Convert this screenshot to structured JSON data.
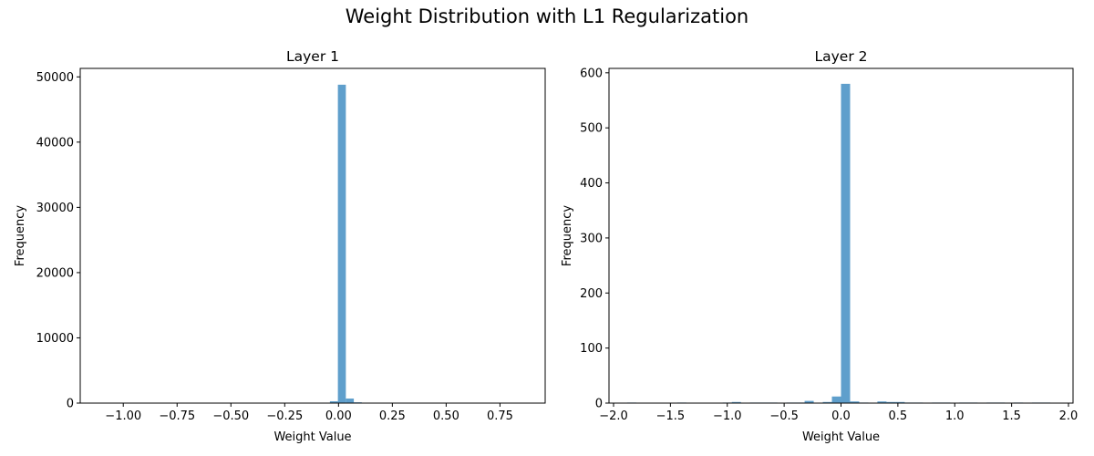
{
  "figure": {
    "title": "Weight Distribution with L1 Regularization"
  },
  "chart_data": [
    {
      "type": "bar",
      "title": "Layer 1",
      "xlabel": "Weight Value",
      "ylabel": "Frequency",
      "xlim": [
        -1.2,
        0.96
      ],
      "ylim": [
        0,
        51300
      ],
      "xticks": [
        -1.0,
        -0.75,
        -0.5,
        -0.25,
        0.0,
        0.25,
        0.5,
        0.75
      ],
      "xtick_labels": [
        "−1.00",
        "−0.75",
        "−0.50",
        "−0.25",
        "0.00",
        "0.25",
        "0.50",
        "0.75"
      ],
      "yticks": [
        0,
        10000,
        20000,
        30000,
        40000,
        50000
      ],
      "ytick_labels": [
        "0",
        "10000",
        "20000",
        "30000",
        "40000",
        "50000"
      ],
      "bar_color": "#5f9fcc",
      "bins": [
        {
          "x0": -0.077,
          "x1": -0.04,
          "value": 60
        },
        {
          "x0": -0.04,
          "x1": -0.003,
          "value": 280
        },
        {
          "x0": -0.003,
          "x1": 0.034,
          "value": 48800
        },
        {
          "x0": 0.034,
          "x1": 0.071,
          "value": 700
        },
        {
          "x0": 0.071,
          "x1": 0.108,
          "value": 120
        },
        {
          "x0": 0.108,
          "x1": 0.145,
          "value": 40
        }
      ]
    },
    {
      "type": "bar",
      "title": "Layer 2",
      "xlabel": "Weight Value",
      "ylabel": "Frequency",
      "xlim": [
        -2.04,
        2.04
      ],
      "ylim": [
        0,
        608
      ],
      "xticks": [
        -2.0,
        -1.5,
        -1.0,
        -0.5,
        0.0,
        0.5,
        1.0,
        1.5,
        2.0
      ],
      "xtick_labels": [
        "−2.0",
        "−1.5",
        "−1.0",
        "−0.5",
        "0.0",
        "0.5",
        "1.0",
        "1.5",
        "2.0"
      ],
      "yticks": [
        0,
        100,
        200,
        300,
        400,
        500,
        600
      ],
      "ytick_labels": [
        "0",
        "100",
        "200",
        "300",
        "400",
        "500",
        "600"
      ],
      "bar_color": "#5f9fcc",
      "bins": [
        {
          "x0": -1.88,
          "x1": -1.8,
          "value": 1
        },
        {
          "x0": -1.44,
          "x1": -1.36,
          "value": 1
        },
        {
          "x0": -1.04,
          "x1": -0.96,
          "value": 1
        },
        {
          "x0": -0.96,
          "x1": -0.88,
          "value": 2
        },
        {
          "x0": -0.8,
          "x1": -0.72,
          "value": 1
        },
        {
          "x0": -0.72,
          "x1": -0.64,
          "value": 1
        },
        {
          "x0": -0.64,
          "x1": -0.56,
          "value": 1
        },
        {
          "x0": -0.48,
          "x1": -0.4,
          "value": 1
        },
        {
          "x0": -0.4,
          "x1": -0.32,
          "value": 1
        },
        {
          "x0": -0.32,
          "x1": -0.24,
          "value": 4
        },
        {
          "x0": -0.16,
          "x1": -0.08,
          "value": 2
        },
        {
          "x0": -0.08,
          "x1": 0.0,
          "value": 12
        },
        {
          "x0": 0.0,
          "x1": 0.08,
          "value": 580
        },
        {
          "x0": 0.08,
          "x1": 0.16,
          "value": 3
        },
        {
          "x0": 0.16,
          "x1": 0.24,
          "value": 1
        },
        {
          "x0": 0.32,
          "x1": 0.4,
          "value": 3
        },
        {
          "x0": 0.4,
          "x1": 0.48,
          "value": 2
        },
        {
          "x0": 0.48,
          "x1": 0.56,
          "value": 2
        },
        {
          "x0": 0.56,
          "x1": 0.64,
          "value": 1
        },
        {
          "x0": 0.64,
          "x1": 0.72,
          "value": 1
        },
        {
          "x0": 0.8,
          "x1": 0.88,
          "value": 1
        },
        {
          "x0": 0.88,
          "x1": 0.96,
          "value": 1
        },
        {
          "x0": 1.04,
          "x1": 1.12,
          "value": 1
        },
        {
          "x0": 1.12,
          "x1": 1.2,
          "value": 1
        },
        {
          "x0": 1.28,
          "x1": 1.36,
          "value": 1
        },
        {
          "x0": 1.36,
          "x1": 1.44,
          "value": 1
        },
        {
          "x0": 1.52,
          "x1": 1.6,
          "value": 1
        },
        {
          "x0": 1.68,
          "x1": 1.76,
          "value": 1
        },
        {
          "x0": 1.76,
          "x1": 1.84,
          "value": 1
        }
      ]
    }
  ]
}
